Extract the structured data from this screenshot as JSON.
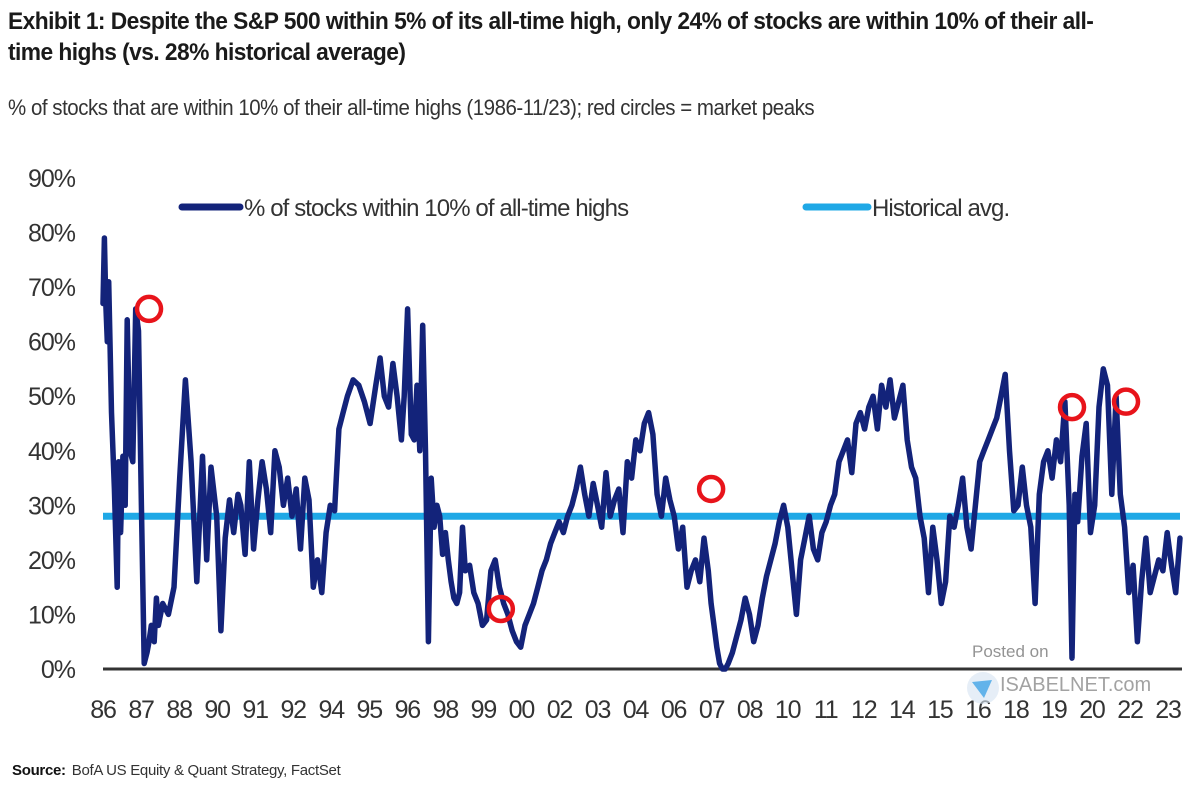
{
  "header": {
    "title": "Exhibit 1: Despite the S&P 500 within 5% of its all-time high, only 24% of stocks are within 10% of their all-time highs (vs. 28% historical average)",
    "subtitle": "% of stocks that are within 10% of their all-time highs (1986-11/23); red circles = market peaks"
  },
  "footer": {
    "source_label": "Source:",
    "source_text": "BofA US Equity & Quant Strategy, FactSet"
  },
  "watermark": {
    "posted": "Posted on",
    "site": "ISABELNET.com"
  },
  "colors": {
    "series": "#13237a",
    "average": "#1fa8e6",
    "peak_marker": "#e8141b",
    "axis": "#333333"
  },
  "chart_data": {
    "type": "line",
    "title": "Exhibit 1: Despite the S&P 500 within 5% of its all-time high, only 24% of stocks are within 10% of their all-time highs (vs. 28% historical average)",
    "subtitle": "% of stocks that are within 10% of their all-time highs (1986-11/23); red circles = market peaks",
    "xlabel": "",
    "ylabel": "",
    "xlim": [
      1986.0,
      2023.9
    ],
    "ylim": [
      0,
      90
    ],
    "yticks": [
      0,
      10,
      20,
      30,
      40,
      50,
      60,
      70,
      80,
      90
    ],
    "ytick_labels": [
      "0%",
      "10%",
      "20%",
      "30%",
      "40%",
      "50%",
      "60%",
      "70%",
      "80%",
      "90%"
    ],
    "xtick_labels": [
      "86",
      "87",
      "88",
      "90",
      "91",
      "92",
      "94",
      "95",
      "96",
      "98",
      "99",
      "00",
      "02",
      "03",
      "04",
      "06",
      "07",
      "08",
      "10",
      "11",
      "12",
      "14",
      "15",
      "16",
      "18",
      "19",
      "20",
      "22",
      "23"
    ],
    "grid": false,
    "legend": {
      "placement": "top",
      "entries": [
        "% of stocks within 10% of all-time highs",
        "Historical avg."
      ]
    },
    "series": [
      {
        "name": "% of stocks within 10% of all-time highs",
        "x": [
          1986.0,
          1986.05,
          1986.1,
          1986.15,
          1986.2,
          1986.3,
          1986.4,
          1986.5,
          1986.55,
          1986.62,
          1986.7,
          1986.78,
          1986.85,
          1986.95,
          1987.05,
          1987.15,
          1987.25,
          1987.35,
          1987.45,
          1987.55,
          1987.62,
          1987.7,
          1987.8,
          1987.88,
          1987.95,
          1988.1,
          1988.3,
          1988.5,
          1988.7,
          1988.9,
          1989.1,
          1989.3,
          1989.5,
          1989.65,
          1989.8,
          1990.0,
          1990.15,
          1990.3,
          1990.45,
          1990.6,
          1990.75,
          1990.85,
          1991.0,
          1991.15,
          1991.3,
          1991.45,
          1991.6,
          1991.75,
          1991.9,
          1992.05,
          1992.2,
          1992.35,
          1992.5,
          1992.65,
          1992.8,
          1992.95,
          1993.1,
          1993.25,
          1993.4,
          1993.55,
          1993.7,
          1993.85,
          1994.0,
          1994.15,
          1994.3,
          1994.45,
          1994.6,
          1994.8,
          1995.0,
          1995.2,
          1995.4,
          1995.6,
          1995.75,
          1995.9,
          1996.05,
          1996.2,
          1996.35,
          1996.5,
          1996.6,
          1996.72,
          1996.85,
          1996.95,
          1997.05,
          1997.15,
          1997.25,
          1997.35,
          1997.45,
          1997.55,
          1997.65,
          1997.75,
          1997.85,
          1997.95,
          1998.05,
          1998.15,
          1998.25,
          1998.35,
          1998.45,
          1998.55,
          1998.65,
          1998.75,
          1998.9,
          1999.05,
          1999.2,
          1999.35,
          1999.5,
          1999.65,
          1999.8,
          1999.95,
          2000.1,
          2000.25,
          2000.4,
          2000.55,
          2000.7,
          2000.85,
          2001.0,
          2001.15,
          2001.3,
          2001.45,
          2001.6,
          2001.75,
          2001.9,
          2002.05,
          2002.2,
          2002.35,
          2002.5,
          2002.65,
          2002.8,
          2002.95,
          2003.1,
          2003.25,
          2003.4,
          2003.55,
          2003.7,
          2003.85,
          2004.0,
          2004.15,
          2004.3,
          2004.45,
          2004.6,
          2004.75,
          2004.9,
          2005.05,
          2005.2,
          2005.35,
          2005.5,
          2005.65,
          2005.8,
          2005.95,
          2006.1,
          2006.25,
          2006.4,
          2006.55,
          2006.7,
          2006.85,
          2007.0,
          2007.15,
          2007.3,
          2007.4,
          2007.5,
          2007.6,
          2007.7,
          2007.8,
          2007.9,
          2008.0,
          2008.15,
          2008.3,
          2008.45,
          2008.6,
          2008.75,
          2008.9,
          2009.05,
          2009.2,
          2009.35,
          2009.5,
          2009.65,
          2009.8,
          2009.95,
          2010.1,
          2010.25,
          2010.4,
          2010.55,
          2010.7,
          2010.85,
          2011.0,
          2011.15,
          2011.3,
          2011.45,
          2011.6,
          2011.75,
          2011.9,
          2012.05,
          2012.2,
          2012.35,
          2012.5,
          2012.65,
          2012.8,
          2012.95,
          2013.1,
          2013.25,
          2013.4,
          2013.55,
          2013.7,
          2013.85,
          2014.0,
          2014.15,
          2014.3,
          2014.45,
          2014.6,
          2014.75,
          2014.9,
          2015.05,
          2015.2,
          2015.35,
          2015.5,
          2015.65,
          2015.8,
          2015.95,
          2016.1,
          2016.25,
          2016.4,
          2016.55,
          2016.7,
          2016.85,
          2017.0,
          2017.15,
          2017.3,
          2017.45,
          2017.6,
          2017.75,
          2017.9,
          2018.05,
          2018.2,
          2018.35,
          2018.5,
          2018.65,
          2018.8,
          2018.95,
          2019.1,
          2019.25,
          2019.4,
          2019.55,
          2019.7,
          2019.85,
          2020.0,
          2020.1,
          2020.2,
          2020.3,
          2020.45,
          2020.6,
          2020.75,
          2020.9,
          2021.05,
          2021.2,
          2021.35,
          2021.5,
          2021.65,
          2021.8,
          2021.95,
          2022.1,
          2022.25,
          2022.4,
          2022.55,
          2022.7,
          2022.85,
          2023.0,
          2023.15,
          2023.3,
          2023.45,
          2023.6,
          2023.75,
          2023.9
        ],
        "values": [
          67,
          79,
          67,
          60,
          71,
          47,
          33,
          15,
          38,
          25,
          39,
          30,
          64,
          40,
          38,
          66,
          62,
          30,
          1,
          3,
          5,
          8,
          5,
          13,
          8,
          12,
          10,
          15,
          35,
          53,
          38,
          16,
          39,
          20,
          37,
          28,
          7,
          24,
          31,
          25,
          32,
          30,
          21,
          38,
          22,
          31,
          38,
          33,
          25,
          40,
          37,
          30,
          35,
          28,
          33,
          22,
          35,
          31,
          15,
          20,
          14,
          25,
          30,
          29,
          44,
          47,
          50,
          53,
          52,
          49,
          45,
          52,
          57,
          50,
          48,
          56,
          50,
          42,
          50,
          66,
          43,
          42,
          52,
          40,
          63,
          40,
          5,
          35,
          26,
          30,
          28,
          21,
          25,
          20,
          16,
          13,
          12,
          14,
          26,
          18,
          19,
          14,
          12,
          8,
          9,
          18,
          20,
          15,
          12,
          10,
          7,
          5,
          4,
          8,
          10,
          12,
          15,
          18,
          20,
          23,
          25,
          27,
          25,
          28,
          30,
          33,
          37,
          32,
          28,
          34,
          30,
          26,
          36,
          28,
          31,
          33,
          25,
          38,
          35,
          42,
          40,
          45,
          47,
          43,
          32,
          28,
          35,
          31,
          28,
          22,
          26,
          15,
          18,
          20,
          16,
          24,
          18,
          12,
          8,
          4,
          1,
          0,
          0,
          1,
          3,
          6,
          9,
          13,
          10,
          5,
          8,
          13,
          17,
          20,
          23,
          27,
          30,
          26,
          18,
          10,
          20,
          24,
          28,
          22,
          20,
          25,
          27,
          30,
          32,
          38,
          40,
          42,
          36,
          45,
          47,
          44,
          48,
          50,
          44,
          52,
          48,
          53,
          46,
          49,
          52,
          42,
          37,
          35,
          28,
          24,
          14,
          26,
          20,
          12,
          16,
          28,
          26,
          30,
          35,
          26,
          22,
          30,
          38,
          40,
          42,
          44,
          46,
          50,
          54,
          40,
          29,
          30,
          37,
          30,
          26,
          12,
          32,
          38,
          40,
          35,
          42,
          38,
          49,
          30,
          2,
          32,
          27,
          39,
          45,
          25,
          30,
          48,
          55,
          52,
          32,
          50,
          32,
          26,
          14,
          19,
          5,
          16,
          24,
          14,
          17,
          20,
          18,
          25,
          19,
          14,
          24
        ],
        "color": "#13237a"
      },
      {
        "name": "Historical avg.",
        "x": [
          1986.0,
          2023.9
        ],
        "values": [
          28,
          28
        ],
        "color": "#1fa8e6"
      }
    ],
    "annotations": [
      {
        "type": "market-peak-circle",
        "x": 1987.62,
        "y": 66
      },
      {
        "type": "market-peak-circle",
        "x": 2000.0,
        "y": 11
      },
      {
        "type": "market-peak-circle",
        "x": 2007.4,
        "y": 33
      },
      {
        "type": "market-peak-circle",
        "x": 2020.1,
        "y": 48
      },
      {
        "type": "market-peak-circle",
        "x": 2022.0,
        "y": 49
      }
    ]
  }
}
